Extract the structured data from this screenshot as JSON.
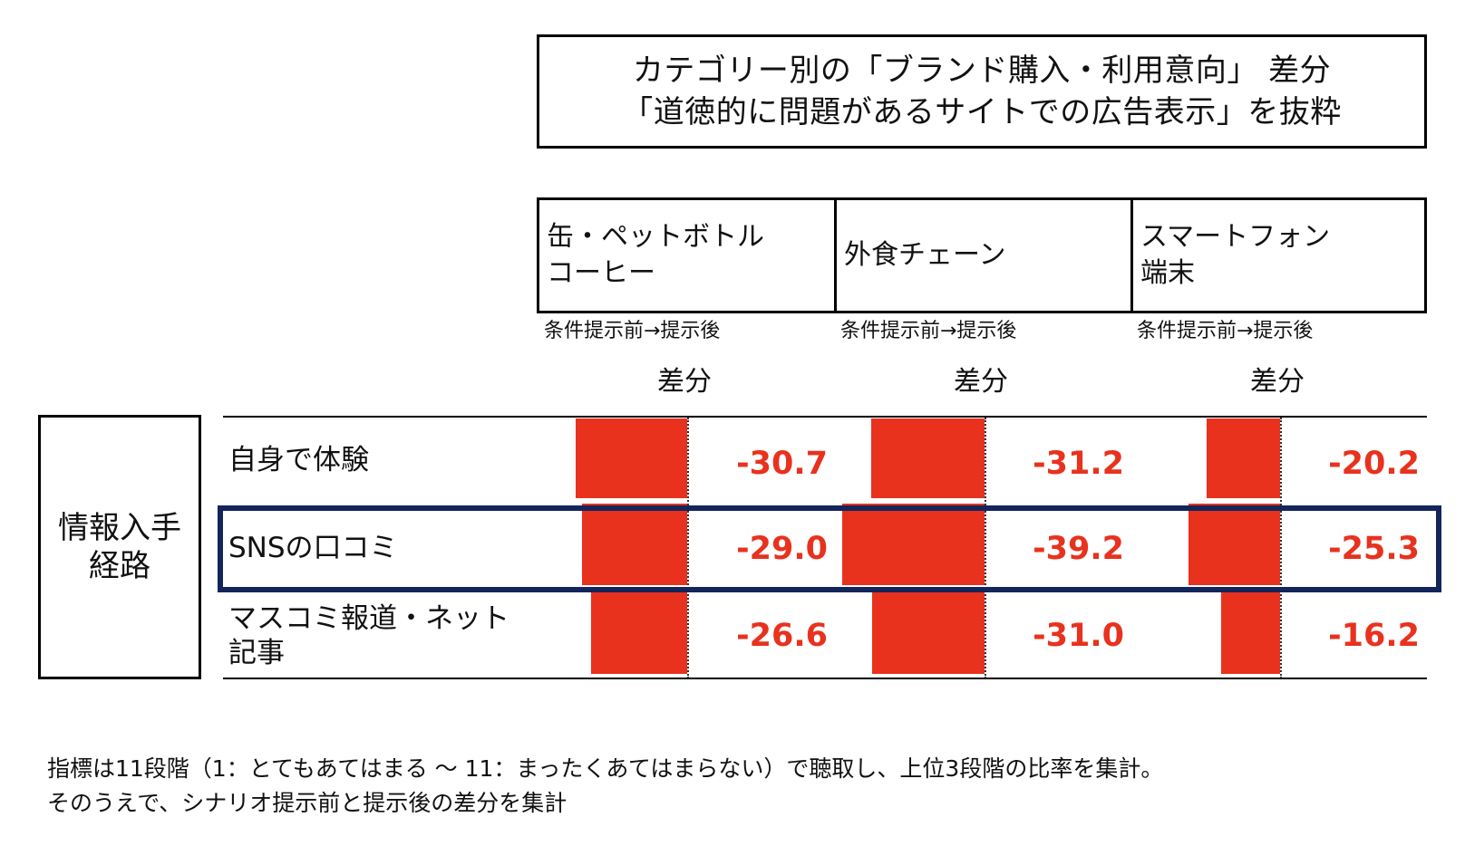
{
  "title": {
    "line1": "カテゴリー別の「ブランド購入・利用意向」 差分",
    "line2": "「道徳的に問題があるサイトでの広告表示」を抜粋"
  },
  "row_group_label": {
    "line1": "情報入手",
    "line2": "経路"
  },
  "categories": [
    {
      "line1": "缶・ペットボトル",
      "line2": "コーヒー",
      "note": "条件提示前→提示後",
      "diff_label": "差分"
    },
    {
      "line1": "外食チェーン",
      "line2": "",
      "note": "条件提示前→提示後",
      "diff_label": "差分"
    },
    {
      "line1": "スマートフォン",
      "line2": "端末",
      "note": "条件提示前→提示後",
      "diff_label": "差分"
    }
  ],
  "rows": [
    {
      "line1": "自身で体験",
      "line2": ""
    },
    {
      "line1": "SNSの口コミ",
      "line2": ""
    },
    {
      "line1": "マスコミ報道・ネット",
      "line2": "記事"
    }
  ],
  "value_labels": [
    [
      "-30.7",
      "-31.2",
      "-20.2"
    ],
    [
      "-29.0",
      "-39.2",
      "-25.3"
    ],
    [
      "-26.6",
      "-31.0",
      "-16.2"
    ]
  ],
  "chart_data": {
    "type": "bar",
    "orientation": "horizontal",
    "categories": [
      "自身で体験",
      "SNSの口コミ",
      "マスコミ報道・ネット記事"
    ],
    "series": [
      {
        "name": "缶・ペットボトルコーヒー",
        "values": [
          -30.7,
          -29.0,
          -26.6
        ]
      },
      {
        "name": "外食チェーン",
        "values": [
          -31.2,
          -39.2,
          -31.0
        ]
      },
      {
        "name": "スマートフォン端末",
        "values": [
          -20.2,
          -25.3,
          -16.2
        ]
      }
    ],
    "highlighted_row": "SNSの口コミ",
    "bar_color": "#e8321e",
    "highlight_color": "#13255a"
  },
  "footnote": {
    "line1": "指標は11段階（1：とてもあてはまる ～ 11：まったくあてはまらない）で聴取し、上位3段階の比率を集計。",
    "line2": "そのうえで、シナリオ提示前と提示後の差分を集計"
  }
}
